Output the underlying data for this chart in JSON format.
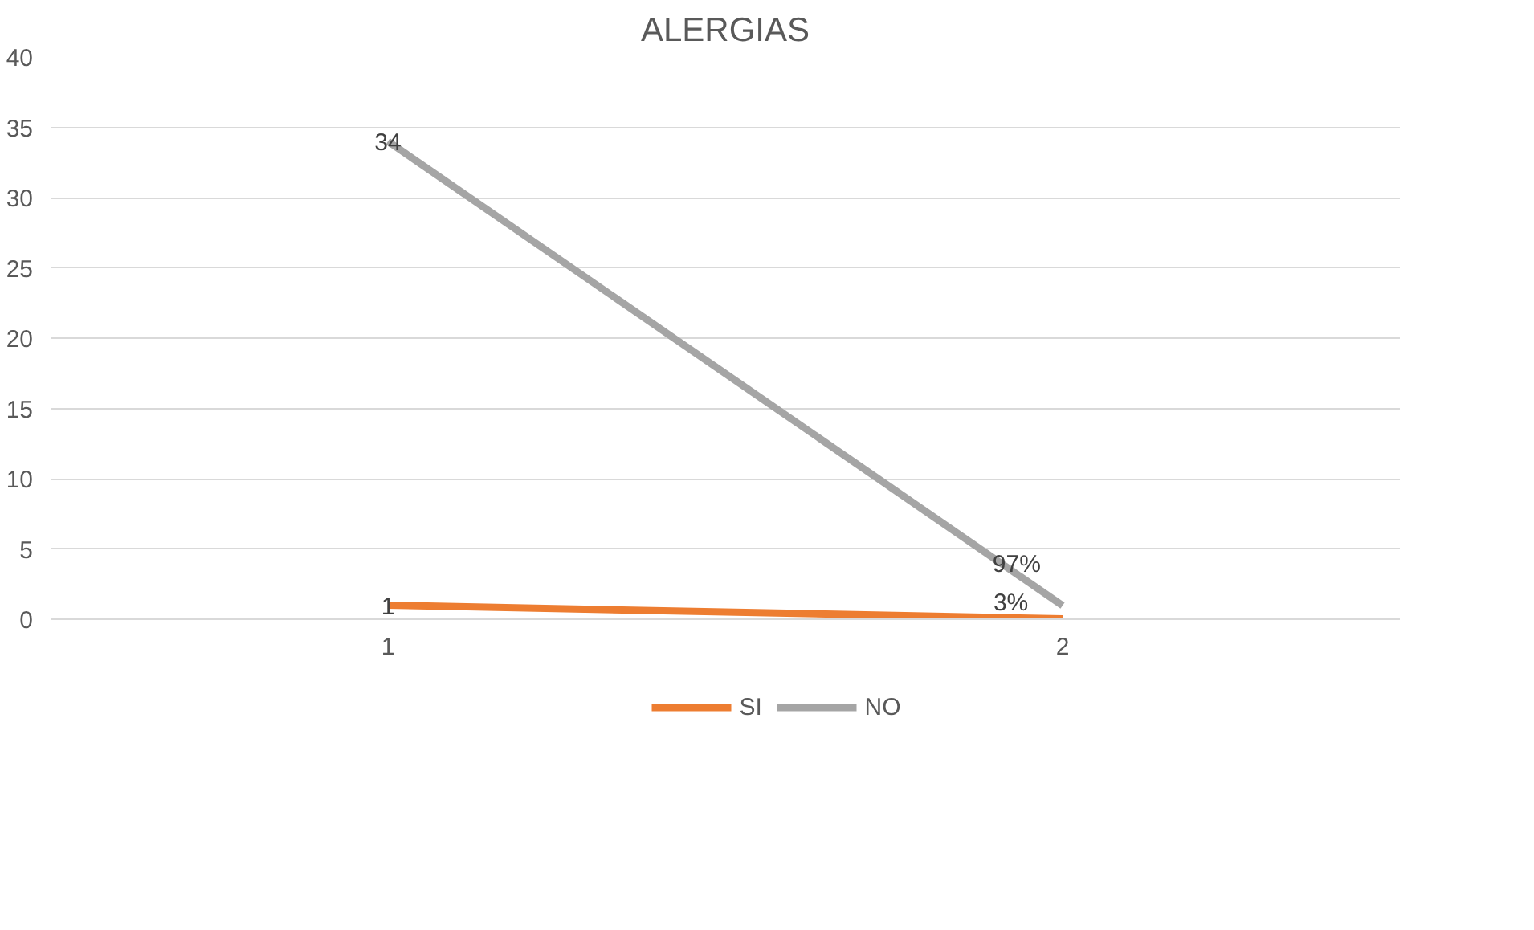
{
  "chart_data": {
    "type": "line",
    "title": "ALERGIAS",
    "categories": [
      "1",
      "2"
    ],
    "series": [
      {
        "name": "SI",
        "color": "#ed7d31",
        "values": [
          1,
          0.03
        ],
        "value_labels": [
          "1",
          "3%"
        ]
      },
      {
        "name": "NO",
        "color": "#a5a5a5",
        "values": [
          34,
          0.97
        ],
        "value_labels": [
          "34",
          "97%"
        ]
      }
    ],
    "ylim": [
      0,
      40
    ],
    "yticks": [
      0,
      5,
      10,
      15,
      20,
      25,
      30,
      35,
      40
    ],
    "grid": "y",
    "legend": "bottom",
    "marker": "none",
    "line_style": "solid"
  }
}
